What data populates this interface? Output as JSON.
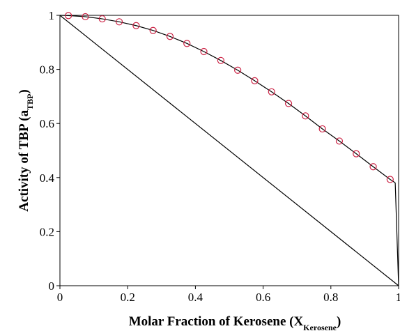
{
  "chart_data": {
    "type": "scatter",
    "xlabel": {
      "main": "Molar Fraction of Kerosene (X",
      "sub": "Kerosene",
      "close": ")"
    },
    "ylabel": {
      "main": "Activity  of TBP (a",
      "sub": "TBP",
      "close": ")"
    },
    "xlim": [
      0,
      1
    ],
    "ylim": [
      0,
      1
    ],
    "x_ticks": [
      0,
      0.2,
      0.4,
      0.6,
      0.8,
      1
    ],
    "y_ticks": [
      0,
      0.2,
      0.4,
      0.6,
      0.8,
      1
    ],
    "x_tick_labels": [
      "0",
      "0.2",
      "0.4",
      "0.6",
      "0.8",
      "1"
    ],
    "y_tick_labels": [
      "0",
      "0.2",
      "0.4",
      "0.6",
      "0.8",
      "1"
    ],
    "grid": false,
    "series": [
      {
        "kind": "markers",
        "marker": "circle-open",
        "color": "#cc2244",
        "x": [
          0.025,
          0.075,
          0.125,
          0.175,
          0.225,
          0.275,
          0.325,
          0.375,
          0.425,
          0.475,
          0.525,
          0.575,
          0.625,
          0.675,
          0.725,
          0.775,
          0.825,
          0.875,
          0.925,
          0.975
        ],
        "y": [
          0.999,
          0.995,
          0.987,
          0.976,
          0.962,
          0.944,
          0.922,
          0.896,
          0.866,
          0.833,
          0.797,
          0.758,
          0.717,
          0.674,
          0.628,
          0.58,
          0.535,
          0.488,
          0.44,
          0.393
        ]
      },
      {
        "kind": "line",
        "color": "#000000",
        "x": [
          0,
          0.025,
          0.075,
          0.125,
          0.175,
          0.225,
          0.275,
          0.325,
          0.375,
          0.425,
          0.475,
          0.525,
          0.575,
          0.625,
          0.675,
          0.725,
          0.775,
          0.825,
          0.875,
          0.925,
          0.975,
          0.985,
          0.99,
          1.0
        ],
        "y": [
          1.0,
          0.999,
          0.995,
          0.987,
          0.976,
          0.962,
          0.944,
          0.922,
          0.896,
          0.866,
          0.833,
          0.797,
          0.758,
          0.717,
          0.674,
          0.628,
          0.58,
          0.535,
          0.488,
          0.44,
          0.393,
          0.385,
          0.38,
          0.0
        ]
      },
      {
        "kind": "line",
        "color": "#000000",
        "x": [
          0,
          1
        ],
        "y": [
          1,
          0
        ]
      }
    ]
  }
}
